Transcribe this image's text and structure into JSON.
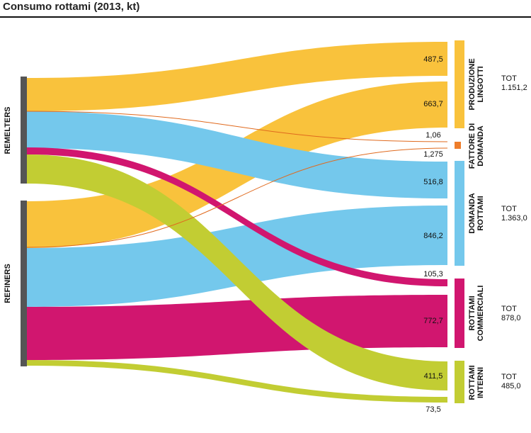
{
  "title": "Consumo rottami (2013, kt)",
  "sources": {
    "remelters": "REMELTERS",
    "refiners": "REFINERS"
  },
  "targets": {
    "produzione": [
      "PRODUZIONE",
      "LINGOTTI"
    ],
    "fattore": [
      "FATTORE DI",
      "DOMANDA"
    ],
    "domanda": [
      "DOMANDA",
      "ROTTAMI"
    ],
    "commerciali": [
      "ROTTAMI",
      "COMMERCIALI"
    ],
    "interni": [
      "ROTTAMI",
      "INTERNI"
    ]
  },
  "totals": {
    "label": "TOT",
    "produzione": "1.151,2",
    "domanda": "1.363,0",
    "commerciali": "878,0",
    "interni": "485,0"
  },
  "colors": {
    "produzione": "#f9c23c",
    "fattore": "#ee7d2b",
    "domanda": "#74c8ec",
    "commerciali": "#d1166f",
    "interni": "#c2cd33",
    "source_bar": "#555555"
  },
  "chart_data": {
    "type": "sankey",
    "title": "Consumo rottami (2013, kt)",
    "units": "kt",
    "nodes": [
      "REMELTERS",
      "REFINERS",
      "PRODUZIONE LINGOTTI",
      "FATTORE DI DOMANDA",
      "DOMANDA ROTTAMI",
      "ROTTAMI COMMERCIALI",
      "ROTTAMI INTERNI"
    ],
    "flows": [
      {
        "source": "REMELTERS",
        "target": "PRODUZIONE LINGOTTI",
        "value": 487.5,
        "label": "487,5"
      },
      {
        "source": "REFINERS",
        "target": "PRODUZIONE LINGOTTI",
        "value": 663.7,
        "label": "663,7"
      },
      {
        "source": "REMELTERS",
        "target": "FATTORE DI DOMANDA",
        "value": 1.06,
        "label": "1,06"
      },
      {
        "source": "REFINERS",
        "target": "FATTORE DI DOMANDA",
        "value": 1.275,
        "label": "1,275"
      },
      {
        "source": "REMELTERS",
        "target": "DOMANDA ROTTAMI",
        "value": 516.8,
        "label": "516,8"
      },
      {
        "source": "REFINERS",
        "target": "DOMANDA ROTTAMI",
        "value": 846.2,
        "label": "846,2"
      },
      {
        "source": "REMELTERS",
        "target": "ROTTAMI COMMERCIALI",
        "value": 105.3,
        "label": "105,3"
      },
      {
        "source": "REFINERS",
        "target": "ROTTAMI COMMERCIALI",
        "value": 772.7,
        "label": "772,7"
      },
      {
        "source": "REMELTERS",
        "target": "ROTTAMI INTERNI",
        "value": 411.5,
        "label": "411,5"
      },
      {
        "source": "REFINERS",
        "target": "ROTTAMI INTERNI",
        "value": 73.5,
        "label": "73,5"
      }
    ],
    "totals": [
      {
        "node": "PRODUZIONE LINGOTTI",
        "label": "TOT 1.151,2"
      },
      {
        "node": "DOMANDA ROTTAMI",
        "label": "TOT 1.363,0"
      },
      {
        "node": "ROTTAMI COMMERCIALI",
        "label": "TOT 878,0"
      },
      {
        "node": "ROTTAMI INTERNI",
        "label": "TOT 485,0"
      }
    ]
  }
}
